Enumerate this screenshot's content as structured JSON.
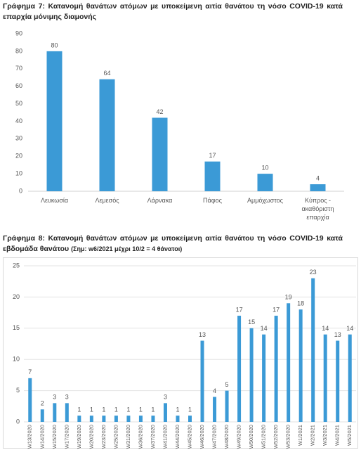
{
  "chart_data": [
    {
      "type": "bar",
      "title": "Γράφημα 7: Κατανομή θανάτων ατόμων με υποκείμενη αιτία θανάτου τη νόσο COVID-19 κατά επαρχία μόνιμης διαμονής",
      "categories": [
        "Λευκωσία",
        "Λεμεσός",
        "Λάρνακα",
        "Πάφος",
        "Αμμόχωστος",
        "Κύπρος - ακαθόριστη επαρχία"
      ],
      "values": [
        80,
        64,
        42,
        17,
        10,
        4
      ],
      "color": "#3b9ad6",
      "ylim": [
        0,
        90
      ],
      "yticks": [
        0,
        10,
        20,
        30,
        40,
        50,
        60,
        70,
        80,
        90
      ],
      "grid": false
    },
    {
      "type": "bar",
      "title": "Γράφημα 8: Κατανομή θανάτων ατόμων με υποκείμενη αιτία θανάτου τη νόσο COVID-19 κατά εβδομάδα θανάτου",
      "subtitle": "(Σημ: w6/2021 μέχρι 10/2 = 4 θάνατοι)",
      "categories": [
        "W13/2020",
        "W14/2020",
        "W15/2020",
        "W17/2020",
        "W19/2020",
        "W20/2020",
        "W23/2020",
        "W25/2020",
        "W31/2020",
        "W36/2020",
        "W37/2020",
        "W41/2020",
        "W44/2020",
        "W45/2020",
        "W46/2020",
        "W47/2020",
        "W48/2020",
        "W49/2020",
        "W50/2020",
        "W51/2020",
        "W52/2020",
        "W53/2020",
        "W1/2021",
        "W2/2021",
        "W3/2021",
        "W4/2021",
        "W5/2021"
      ],
      "values": [
        7,
        2,
        3,
        3,
        1,
        1,
        1,
        1,
        1,
        1,
        1,
        3,
        1,
        1,
        13,
        4,
        5,
        17,
        15,
        14,
        17,
        19,
        18,
        23,
        14,
        13,
        14
      ],
      "color": "#3b9ad6",
      "ylim": [
        0,
        25
      ],
      "yticks": [
        0,
        5,
        10,
        15,
        20,
        25
      ],
      "grid": true
    }
  ]
}
